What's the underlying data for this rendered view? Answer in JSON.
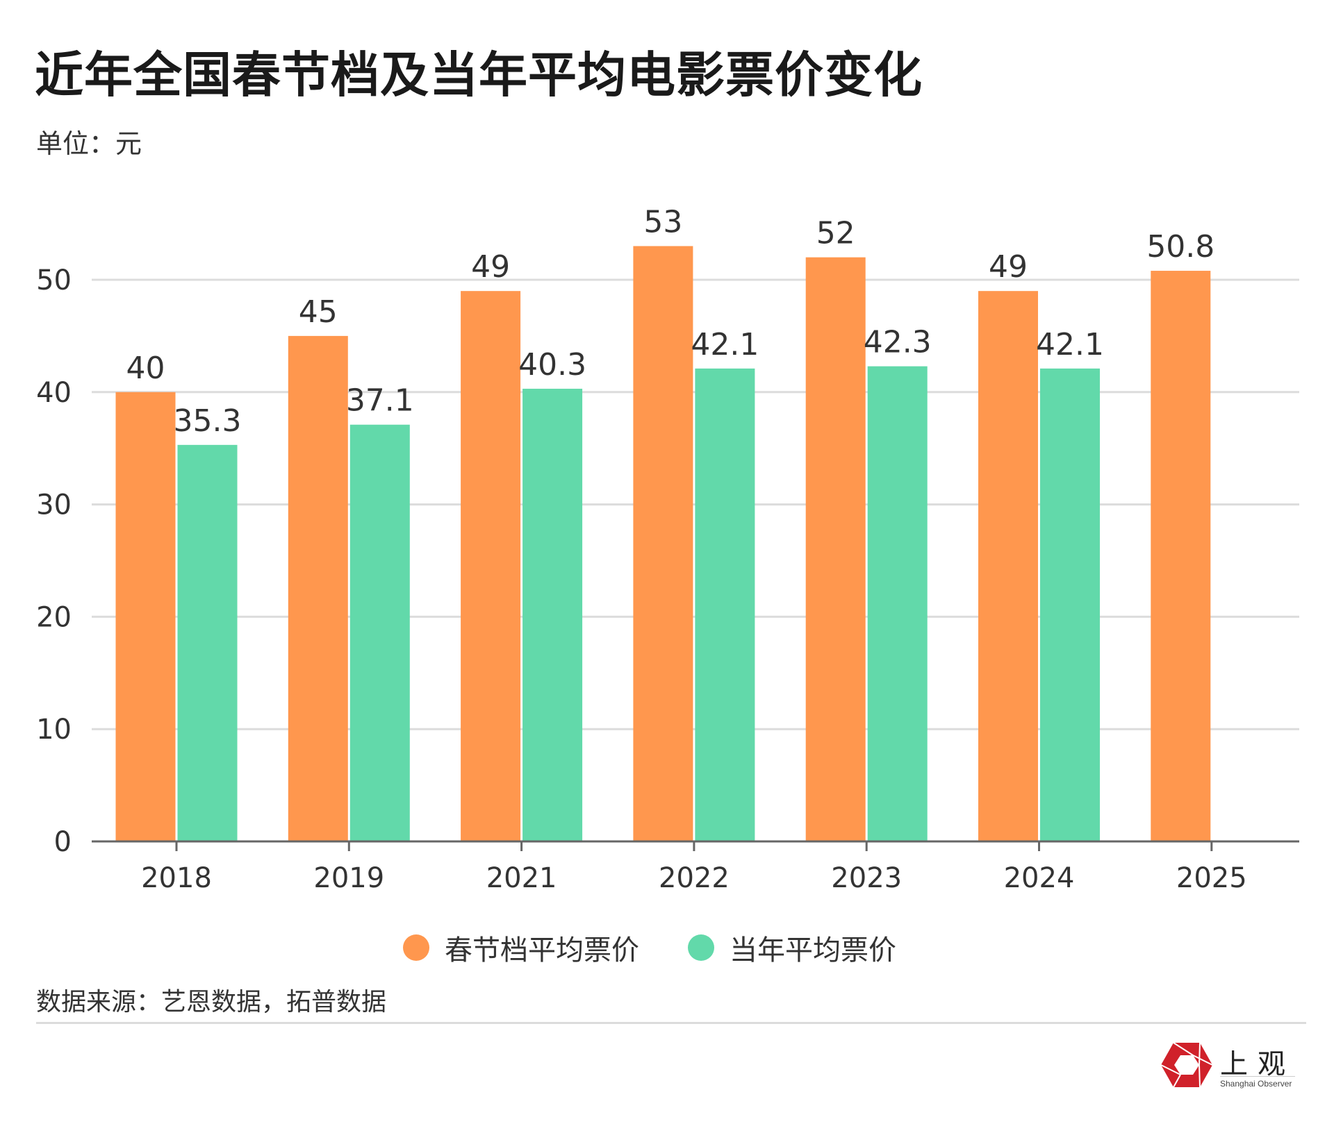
{
  "header": {
    "title": "近年全国春节档及当年平均电影票价变化",
    "unit": "单位：元"
  },
  "chart_data": {
    "type": "bar",
    "title": "近年全国春节档及当年平均电影票价变化",
    "subtitle": "单位：元",
    "xlabel": "",
    "ylabel": "",
    "categories": [
      "2018",
      "2019",
      "2021",
      "2022",
      "2023",
      "2024",
      "2025"
    ],
    "series": [
      {
        "name": "春节档平均票价",
        "color": "#FF974E",
        "values": [
          40,
          45,
          49,
          53,
          52,
          49,
          50.8
        ],
        "labels": [
          "40",
          "45",
          "49",
          "53",
          "52",
          "49",
          "50.8"
        ]
      },
      {
        "name": "当年平均票价",
        "color": "#62D9AA",
        "values": [
          35.3,
          37.1,
          40.3,
          42.1,
          42.3,
          42.1,
          null
        ],
        "labels": [
          "35.3",
          "37.1",
          "40.3",
          "42.1",
          "42.3",
          "42.1",
          ""
        ]
      }
    ],
    "ylim": [
      0,
      50
    ],
    "yticks": [
      "0",
      "10",
      "20",
      "30",
      "40",
      "50"
    ],
    "grid": true,
    "legend": "bottom-center"
  },
  "footer": {
    "source": "数据来源：艺恩数据，拓普数据",
    "logo_cn": "上观",
    "logo_en": "Shanghai Observer",
    "logo_color": "#D0212A"
  }
}
